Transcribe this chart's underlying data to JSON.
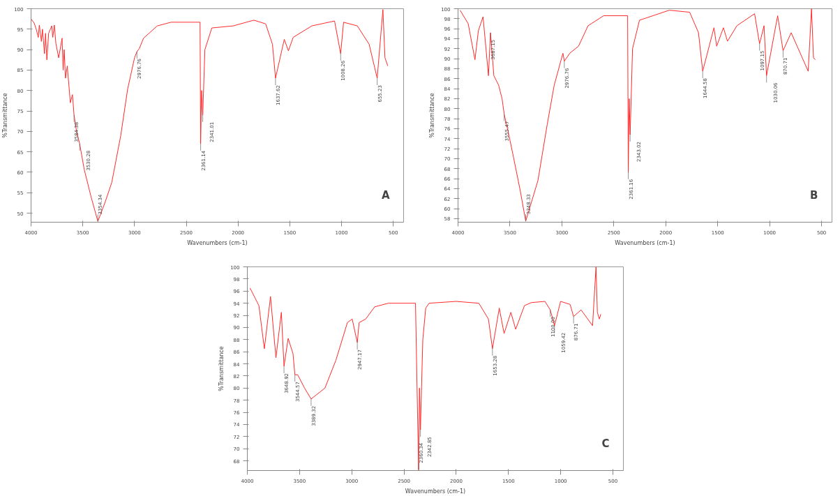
{
  "chart_data": [
    {
      "type": "line",
      "xlabel": "Wavenumbers (cm-1)",
      "ylabel": "%Transmittance",
      "xlim": [
        4000,
        400
      ],
      "xticks": [
        4000,
        3500,
        3000,
        2500,
        2000,
        1500,
        1000,
        500
      ],
      "ylim": [
        47.8,
        100
      ],
      "yticks": [
        50,
        55,
        60,
        65,
        70,
        75,
        80,
        85,
        90,
        95,
        100
      ],
      "series": [
        {
          "color": "#ff2a2a",
          "x": [
            4000,
            3970,
            3950,
            3930,
            3920,
            3900,
            3890,
            3870,
            3860,
            3847,
            3830,
            3800,
            3790,
            3775,
            3760,
            3733,
            3700,
            3690,
            3680,
            3667,
            3650,
            3620,
            3600,
            3584.38,
            3560,
            3530.28,
            3487,
            3420,
            3354.34,
            3287,
            3220,
            3133,
            3067,
            3000,
            2976.76,
            2953,
            2913,
            2780,
            2647,
            2367,
            2361.14,
            2352,
            2341.01,
            2320,
            2253,
            2047,
            1847,
            1733,
            1667,
            1637.62,
            1553,
            1513,
            1467,
            1287,
            1067,
            1008.26,
            980,
            847,
            733,
            655.23,
            600,
            580,
            553
          ],
          "values": [
            97.5,
            96.5,
            95,
            93,
            96,
            92,
            95,
            89,
            94,
            87.5,
            94,
            95.8,
            93,
            96,
            91.5,
            88,
            92.8,
            85,
            90,
            83,
            86,
            77,
            79,
            74,
            70,
            67,
            60.8,
            54,
            48,
            52.5,
            57.5,
            69,
            80.3,
            88,
            89.5,
            90.3,
            92.8,
            95.8,
            96.7,
            96.7,
            67,
            80,
            74,
            90,
            95.3,
            95.8,
            97.2,
            96.3,
            91.3,
            83,
            92.5,
            89.7,
            93,
            95.8,
            97,
            89,
            96.7,
            95.8,
            91.3,
            83,
            99.8,
            88,
            86
          ]
        }
      ],
      "annotations": [
        {
          "text": "3584.38",
          "x": 3584.38,
          "y": 74
        },
        {
          "text": "3530.28",
          "x": 3530.28,
          "y": 67
        },
        {
          "text": "3354.34",
          "x": 3354.34,
          "y": 48
        },
        {
          "text": "2976.76",
          "x": 2976.76,
          "y": 89.5
        },
        {
          "text": "2361.14",
          "x": 2361.14,
          "y": 67
        },
        {
          "text": "2341.01",
          "x": 2341.01,
          "y": 74
        },
        {
          "text": "1637.62",
          "x": 1637.62,
          "y": 83
        },
        {
          "text": "1008.26",
          "x": 1008.26,
          "y": 89
        },
        {
          "text": "655.23",
          "x": 655.23,
          "y": 83
        },
        "A"
      ]
    },
    {
      "type": "line",
      "xlabel": "Wavenumbers (cm-1)",
      "ylabel": "%Transmittance",
      "xlim": [
        4000,
        400
      ],
      "xticks": [
        4000,
        3500,
        3000,
        2500,
        2000,
        1500,
        1000,
        500
      ],
      "ylim": [
        57.3,
        100
      ],
      "yticks": [
        58,
        60,
        62,
        64,
        66,
        68,
        70,
        72,
        74,
        76,
        78,
        80,
        82,
        84,
        86,
        88,
        90,
        92,
        94,
        96,
        98,
        100
      ],
      "series": [
        {
          "color": "#ff2a2a",
          "x": [
            3980,
            3902,
            3837,
            3804,
            3759,
            3707,
            3687.15,
            3655,
            3609,
            3576,
            3555.47,
            3511,
            3466,
            3400,
            3348.33,
            3231,
            3140,
            3074,
            2990,
            2976.76,
            2924,
            2840,
            2748,
            2598,
            2367,
            2361.16,
            2352,
            2343.02,
            2320,
            2253,
            1966,
            1770,
            1685,
            1644.58,
            1536,
            1510,
            1445,
            1406,
            1315,
            1145,
            1097.15,
            1054,
            1030.06,
            923,
            870.71,
            793,
            629,
            597,
            578,
            560
          ],
          "values": [
            99.7,
            97,
            89.8,
            95.6,
            98.4,
            86.6,
            95.2,
            86.6,
            84.7,
            82,
            78.9,
            74.8,
            70.3,
            63.5,
            57.5,
            65.6,
            77,
            84.7,
            91.1,
            89.5,
            91.1,
            92.5,
            96.6,
            98.6,
            98.6,
            67.3,
            82,
            74.8,
            92,
            97.7,
            99.7,
            99.3,
            95.2,
            87.5,
            96.2,
            92.5,
            96.2,
            93.5,
            96.6,
            99,
            93,
            96.6,
            86.6,
            98.6,
            91.6,
            95.2,
            87.5,
            100,
            90.2,
            89.8
          ]
        }
      ],
      "annotations": [
        {
          "text": "3687.15",
          "x": 3687.15,
          "y": 95.2
        },
        {
          "text": "3555.47",
          "x": 3555.47,
          "y": 78.9
        },
        {
          "text": "3348.33",
          "x": 3348.33,
          "y": 57.5
        },
        {
          "text": "2976.76",
          "x": 2976.76,
          "y": 89.5
        },
        {
          "text": "2361.16",
          "x": 2361.16,
          "y": 67.3
        },
        {
          "text": "2343.02",
          "x": 2343.02,
          "y": 74.8
        },
        {
          "text": "1644.58",
          "x": 1644.58,
          "y": 87.5
        },
        {
          "text": "1097.15",
          "x": 1097.15,
          "y": 93
        },
        {
          "text": "1030.06",
          "x": 1030.06,
          "y": 86.6
        },
        {
          "text": "870.71",
          "x": 870.71,
          "y": 91.6
        },
        "B"
      ]
    },
    {
      "type": "line",
      "xlabel": "Wavenumbers (cm-1)",
      "ylabel": "%Transmittance",
      "xlim": [
        4000,
        400
      ],
      "xticks": [
        4000,
        3500,
        3000,
        2500,
        2000,
        1500,
        1000,
        500
      ],
      "ylim": [
        66.4,
        100
      ],
      "yticks": [
        68,
        70,
        72,
        74,
        76,
        78,
        80,
        82,
        84,
        86,
        88,
        90,
        92,
        94,
        96,
        98,
        100
      ],
      "series": [
        {
          "color": "#ff2a2a",
          "x": [
            3974,
            3889,
            3837,
            3778,
            3726,
            3674,
            3648.92,
            3609,
            3563,
            3544.57,
            3518,
            3452,
            3389.32,
            3257,
            3152,
            3042,
            2996,
            2947.17,
            2930,
            2866,
            2781,
            2650,
            2390,
            2360.34,
            2352,
            2342.85,
            2320,
            2292,
            2260,
            2000,
            1784,
            1692,
            1653.28,
            1588,
            1542,
            1477,
            1431,
            1347,
            1282,
            1151,
            1100,
            1059.42,
            1001,
            910,
            876.71,
            805,
            695,
            662,
            649,
            630,
            616
          ],
          "values": [
            96.5,
            93.6,
            86.5,
            95.1,
            85,
            92.5,
            83.6,
            88.2,
            85.7,
            82.2,
            82.2,
            80,
            78.2,
            80,
            84.6,
            90.8,
            91.4,
            87.5,
            90.8,
            91.4,
            93.4,
            94,
            94,
            66.5,
            80,
            73.1,
            88,
            93.2,
            94,
            94.3,
            94,
            91.4,
            86.5,
            93.2,
            89,
            92.5,
            89.7,
            93.6,
            94.1,
            94.3,
            92.9,
            90.3,
            94.3,
            93.8,
            91.8,
            92.9,
            90.3,
            100,
            92.5,
            91.4,
            92.2
          ]
        }
      ],
      "annotations": [
        {
          "text": "3648.92",
          "x": 3648.92,
          "y": 83.6
        },
        {
          "text": "3544.57",
          "x": 3544.57,
          "y": 82.2
        },
        {
          "text": "3389.32",
          "x": 3389.32,
          "y": 78.2
        },
        {
          "text": "2947.17",
          "x": 2947.17,
          "y": 87.5
        },
        {
          "text": "2360.34",
          "x": 2360.34,
          "y": 66.5
        },
        {
          "text": "2342.85",
          "x": 2342.85,
          "y": 73.1
        },
        {
          "text": "1653.28",
          "x": 1653.28,
          "y": 86.5
        },
        {
          "text": "1100.00",
          "x": 1100.0,
          "y": 92.9
        },
        {
          "text": "1059.42",
          "x": 1059.42,
          "y": 90.3
        },
        {
          "text": "876.71",
          "x": 876.71,
          "y": 91.8
        },
        "C"
      ]
    }
  ]
}
